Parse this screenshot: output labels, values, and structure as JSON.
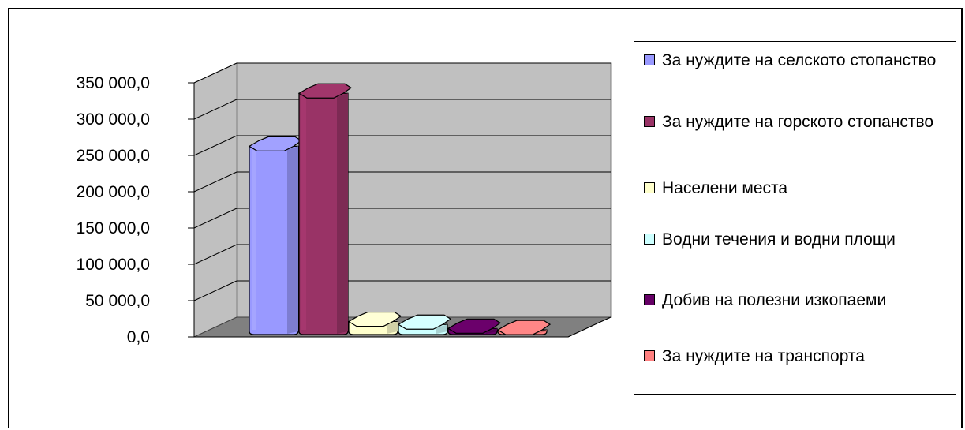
{
  "chart_data": {
    "type": "bar",
    "categories": [
      ""
    ],
    "series": [
      {
        "name": "За нуждите на селското стопанство",
        "values": [
          255000
        ],
        "color": "#9999ff"
      },
      {
        "name": "За нуждите на горското стопанство",
        "values": [
          328000
        ],
        "color": "#993366"
      },
      {
        "name": "Населени места",
        "values": [
          13500
        ],
        "color": "#ffffcc"
      },
      {
        "name": "Водни течения и водни площи",
        "values": [
          9500
        ],
        "color": "#ccffff"
      },
      {
        "name": "Добив на полезни изкопаеми",
        "values": [
          4000
        ],
        "color": "#660066"
      },
      {
        "name": "За нуждите на транспорта",
        "values": [
          2000
        ],
        "color": "#ff8080"
      }
    ],
    "ylim": [
      0,
      350000
    ],
    "yticks": [
      "350 000,0",
      "300 000,0",
      "250 000,0",
      "200 000,0",
      "150 000,0",
      "100 000,0",
      "50 000,0",
      "0,0"
    ],
    "title": "",
    "xlabel": "",
    "ylabel": "",
    "grid": true,
    "legend_position": "right"
  }
}
